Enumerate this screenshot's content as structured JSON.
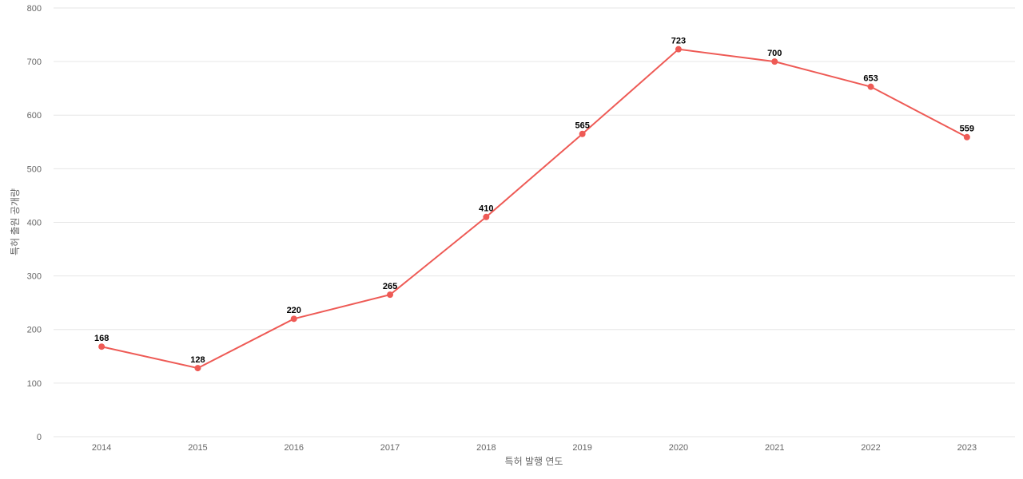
{
  "chart_data": {
    "type": "line",
    "x_label": "특허 발행 연도",
    "y_label": "특허 출원 공개량",
    "categories": [
      "2014",
      "2015",
      "2016",
      "2017",
      "2018",
      "2019",
      "2020",
      "2021",
      "2022",
      "2023"
    ],
    "series": [
      {
        "name": "특허 출원 공개량",
        "color": "#ee5a55",
        "values": [
          168,
          128,
          220,
          265,
          410,
          565,
          723,
          700,
          653,
          559
        ]
      }
    ],
    "ylim": [
      0,
      800
    ],
    "yticks": [
      0,
      100,
      200,
      300,
      400,
      500,
      600,
      700,
      800
    ],
    "grid": true,
    "legend": false
  }
}
